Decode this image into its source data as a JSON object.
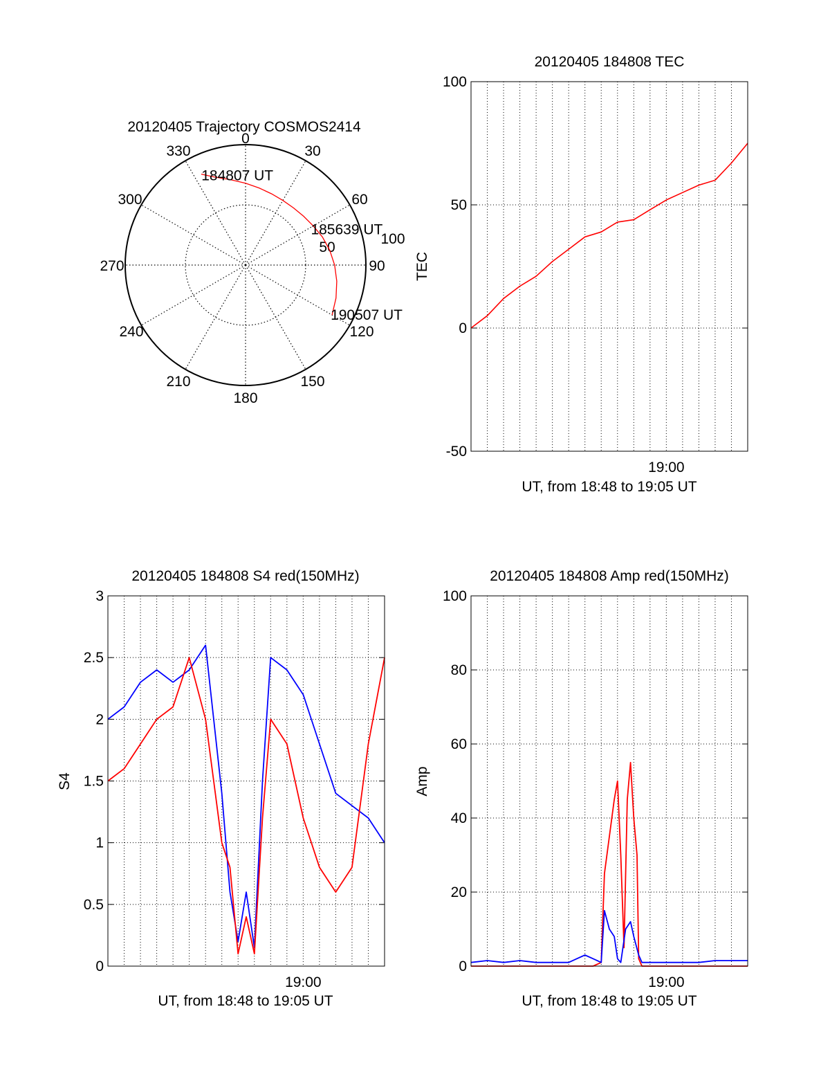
{
  "chart_data": [
    {
      "type": "polar",
      "title": "20120405 Trajectory COSMOS2414",
      "angle_labels": [
        "0",
        "30",
        "60",
        "90",
        "120",
        "150",
        "180",
        "210",
        "240",
        "270",
        "300",
        "330"
      ],
      "radius_labels": [
        "50",
        "100"
      ],
      "rlim": [
        0,
        100
      ],
      "grid": true,
      "colors": {
        "trajectory": "#ff0000",
        "grid": "#000000"
      },
      "trajectory": {
        "azimuth": [
          334,
          340,
          350,
          0,
          10,
          20,
          30,
          40,
          50,
          60,
          70,
          80,
          90,
          100,
          110,
          120
        ],
        "zenith": [
          84,
          78,
          72,
          68,
          65,
          63,
          62,
          62,
          63,
          65,
          68,
          71,
          74,
          77,
          80,
          83
        ]
      },
      "annotations": [
        {
          "text": "184807 UT",
          "azimuth": 335,
          "zenith": 84
        },
        {
          "text": "185639 UT",
          "azimuth": 60,
          "zenith": 64
        },
        {
          "text": "190507 UT",
          "azimuth": 120,
          "zenith": 83
        }
      ]
    },
    {
      "type": "line",
      "title": "20120405 184808 TEC",
      "xlabel": "UT, from 18:48 to 19:05 UT",
      "ylabel": "TEC",
      "xlim_minutes_after_1848": [
        0,
        17
      ],
      "ylim": [
        -50,
        100
      ],
      "yticks": [
        "-50",
        "0",
        "50",
        "100"
      ],
      "xtick_labels": [
        {
          "label": "19:00",
          "minute": 12
        }
      ],
      "grid": true,
      "series": [
        {
          "color": "#ff0000",
          "x_minutes": [
            0,
            1,
            2,
            3,
            4,
            5,
            6,
            7,
            8,
            9,
            10,
            11,
            12,
            13,
            14,
            15,
            16,
            17
          ],
          "values": [
            0,
            5,
            12,
            17,
            21,
            27,
            32,
            37,
            39,
            43,
            44,
            48,
            52,
            55,
            58,
            60,
            67,
            75
          ]
        }
      ]
    },
    {
      "type": "line",
      "title": "20120405 184808 S4 red(150MHz)",
      "xlabel": "UT, from 18:48 to 19:05 UT",
      "ylabel": "S4",
      "xlim_minutes_after_1848": [
        0,
        17
      ],
      "ylim": [
        0,
        3
      ],
      "yticks": [
        "0",
        "0.5",
        "1",
        "1.5",
        "2",
        "2.5",
        "3"
      ],
      "xtick_labels": [
        {
          "label": "19:00",
          "minute": 12
        }
      ],
      "grid": true,
      "series": [
        {
          "color": "#0000ff",
          "x_minutes": [
            0,
            1,
            2,
            3,
            4,
            5,
            6,
            7,
            7.5,
            8,
            8.5,
            9,
            9.5,
            10,
            11,
            12,
            13,
            14,
            15,
            16,
            17
          ],
          "values": [
            2.0,
            2.1,
            2.3,
            2.4,
            2.3,
            2.4,
            2.6,
            1.4,
            0.6,
            0.2,
            0.6,
            0.15,
            1.5,
            2.5,
            2.4,
            2.2,
            1.8,
            1.4,
            1.3,
            1.2,
            1.0
          ]
        },
        {
          "color": "#ff0000",
          "x_minutes": [
            0,
            1,
            2,
            3,
            4,
            5,
            6,
            7,
            7.5,
            8,
            8.5,
            9,
            9.5,
            10,
            11,
            12,
            13,
            14,
            15,
            16,
            17
          ],
          "values": [
            1.5,
            1.6,
            1.8,
            2.0,
            2.1,
            2.5,
            2.0,
            1.0,
            0.8,
            0.1,
            0.4,
            0.1,
            1.2,
            2.0,
            1.8,
            1.2,
            0.8,
            0.6,
            0.8,
            1.8,
            2.5
          ]
        }
      ]
    },
    {
      "type": "line",
      "title": "20120405 184808 Amp red(150MHz)",
      "xlabel": "UT, from 18:48 to 19:05 UT",
      "ylabel": "Amp",
      "xlim_minutes_after_1848": [
        0,
        17
      ],
      "ylim": [
        0,
        100
      ],
      "yticks": [
        "0",
        "20",
        "40",
        "60",
        "80",
        "100"
      ],
      "xtick_labels": [
        {
          "label": "19:00",
          "minute": 12
        }
      ],
      "grid": true,
      "series": [
        {
          "color": "#ff0000",
          "x_minutes": [
            0,
            7.5,
            8.0,
            8.2,
            8.5,
            8.8,
            9.0,
            9.2,
            9.4,
            9.6,
            9.8,
            10.0,
            10.2,
            10.3,
            10.5,
            17
          ],
          "values": [
            0,
            0,
            1,
            25,
            35,
            45,
            50,
            30,
            5,
            45,
            55,
            40,
            30,
            2,
            0,
            0
          ]
        },
        {
          "color": "#0000ff",
          "x_minutes": [
            0,
            1,
            2,
            3,
            4,
            5,
            6,
            6.5,
            7,
            7.5,
            8.0,
            8.2,
            8.5,
            8.8,
            9.0,
            9.2,
            9.5,
            9.8,
            10.0,
            10.3,
            10.5,
            11,
            12,
            13,
            14,
            15,
            16,
            17
          ],
          "values": [
            1,
            1.5,
            1,
            1.5,
            1,
            1,
            1,
            2,
            3,
            2,
            1,
            15,
            10,
            8,
            2,
            1,
            10,
            12,
            8,
            3,
            1,
            1,
            1,
            1,
            1,
            1.5,
            1.5,
            1.5
          ]
        }
      ]
    }
  ]
}
